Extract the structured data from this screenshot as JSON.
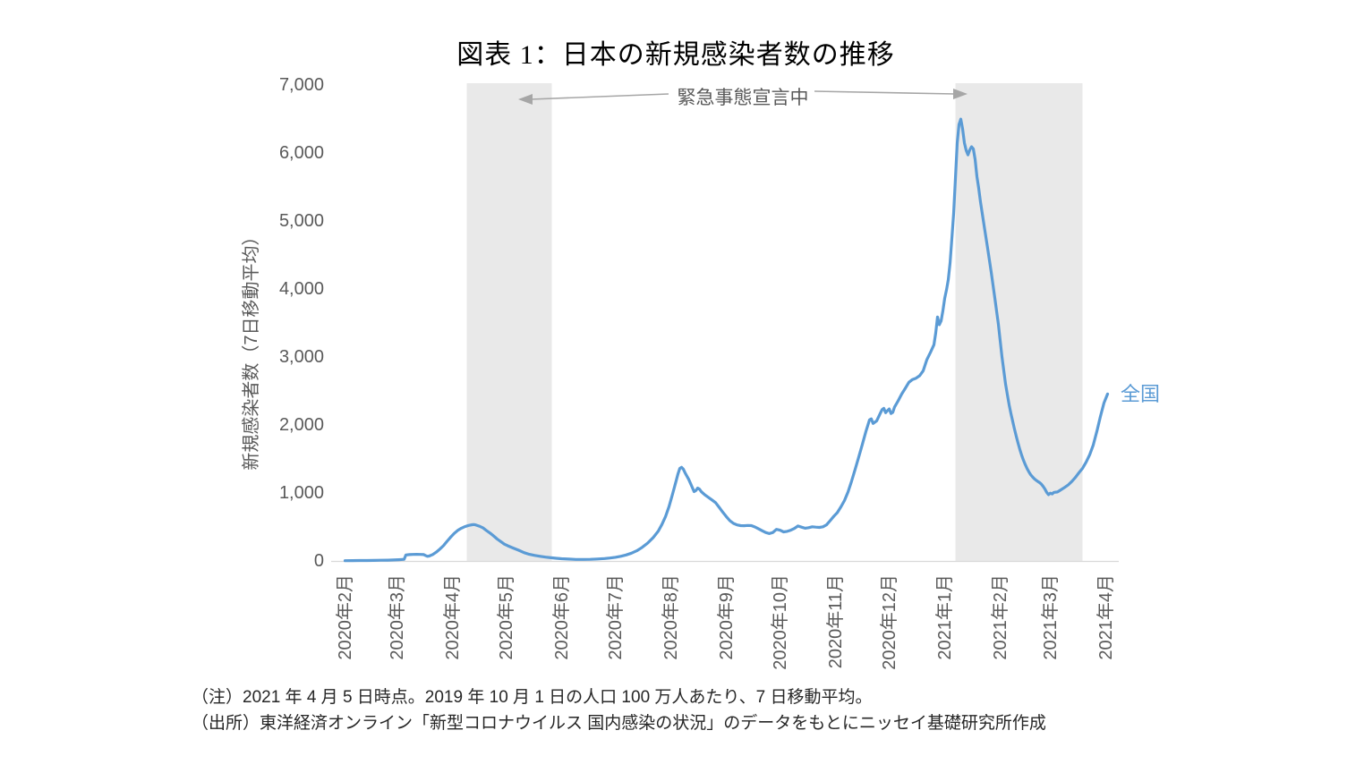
{
  "figure": {
    "title": "図表 1：日本の新規感染者数の推移",
    "note_1": "（注）2021 年 4 月 5 日時点。2019 年 10 月 1 日の人口 100 万人あたり、7 日移動平均。",
    "note_2": "（出所）東洋経済オンライン「新型コロナウイルス  国内感染の状況」のデータをもとにニッセイ基礎研究所作成"
  },
  "chart_data": {
    "type": "line",
    "title": "図表 1：日本の新規感染者数の推移",
    "xlabel": "",
    "ylabel": "新規感染者数（7日移動平均）",
    "ylim": [
      0,
      7000
    ],
    "grid": false,
    "legend_position": "end-of-line",
    "annotation": {
      "label": "緊急事態宣言中"
    },
    "shaded_bands": {
      "meaning": "緊急事態宣言中",
      "color": "#E9E9E9",
      "day_ranges": [
        [
          68,
          115.5
        ],
        [
          341,
          412
        ]
      ]
    },
    "x_unit_days_from": "2020-02",
    "x_ticks": [
      {
        "label": "2020年2月",
        "day": 0
      },
      {
        "label": "2020年3月",
        "day": 29
      },
      {
        "label": "2020年4月",
        "day": 60
      },
      {
        "label": "2020年5月",
        "day": 90
      },
      {
        "label": "2020年6月",
        "day": 121
      },
      {
        "label": "2020年7月",
        "day": 151
      },
      {
        "label": "2020年8月",
        "day": 182
      },
      {
        "label": "2020年9月",
        "day": 213
      },
      {
        "label": "2020年10月",
        "day": 243
      },
      {
        "label": "2020年11月",
        "day": 274
      },
      {
        "label": "2020年12月",
        "day": 304
      },
      {
        "label": "2021年1月",
        "day": 335
      },
      {
        "label": "2021年2月",
        "day": 366
      },
      {
        "label": "2021年3月",
        "day": 394
      },
      {
        "label": "2021年4月",
        "day": 425
      }
    ],
    "y_ticks": [
      {
        "label": "0",
        "value": 0
      },
      {
        "label": "1,000",
        "value": 1000
      },
      {
        "label": "2,000",
        "value": 2000
      },
      {
        "label": "3,000",
        "value": 3000
      },
      {
        "label": "4,000",
        "value": 4000
      },
      {
        "label": "5,000",
        "value": 5000
      },
      {
        "label": "6,000",
        "value": 6000
      },
      {
        "label": "7,000",
        "value": 7000
      }
    ],
    "series": [
      {
        "name": "全国",
        "color": "#5B9BD5",
        "points": [
          [
            0,
            4
          ],
          [
            4,
            5
          ],
          [
            8,
            6
          ],
          [
            12,
            7
          ],
          [
            16,
            8
          ],
          [
            20,
            10
          ],
          [
            24,
            12
          ],
          [
            27,
            15
          ],
          [
            30,
            19
          ],
          [
            33,
            24
          ],
          [
            34,
            88
          ],
          [
            36,
            93
          ],
          [
            38,
            96
          ],
          [
            40,
            97
          ],
          [
            42,
            96
          ],
          [
            44,
            93
          ],
          [
            45,
            80
          ],
          [
            46,
            68
          ],
          [
            47,
            72
          ],
          [
            49,
            95
          ],
          [
            51,
            130
          ],
          [
            53,
            175
          ],
          [
            55,
            225
          ],
          [
            57,
            290
          ],
          [
            59,
            350
          ],
          [
            61,
            405
          ],
          [
            63,
            450
          ],
          [
            65,
            482
          ],
          [
            67,
            505
          ],
          [
            69,
            522
          ],
          [
            71,
            533
          ],
          [
            72,
            536
          ],
          [
            73,
            530
          ],
          [
            75,
            512
          ],
          [
            77,
            488
          ],
          [
            79,
            448
          ],
          [
            81,
            410
          ],
          [
            83,
            368
          ],
          [
            85,
            322
          ],
          [
            87,
            286
          ],
          [
            89,
            248
          ],
          [
            91,
            222
          ],
          [
            94,
            190
          ],
          [
            97,
            158
          ],
          [
            100,
            122
          ],
          [
            103,
            98
          ],
          [
            106,
            82
          ],
          [
            109,
            68
          ],
          [
            112,
            56
          ],
          [
            115,
            47
          ],
          [
            118,
            39
          ],
          [
            121,
            33
          ],
          [
            125,
            27
          ],
          [
            129,
            23
          ],
          [
            133,
            22
          ],
          [
            137,
            24
          ],
          [
            141,
            29
          ],
          [
            145,
            36
          ],
          [
            148,
            44
          ],
          [
            151,
            54
          ],
          [
            154,
            68
          ],
          [
            157,
            88
          ],
          [
            160,
            115
          ],
          [
            163,
            150
          ],
          [
            166,
            200
          ],
          [
            169,
            262
          ],
          [
            172,
            340
          ],
          [
            175,
            440
          ],
          [
            177,
            535
          ],
          [
            179,
            650
          ],
          [
            181,
            800
          ],
          [
            183,
            985
          ],
          [
            185,
            1180
          ],
          [
            186,
            1280
          ],
          [
            187,
            1360
          ],
          [
            188,
            1378
          ],
          [
            189,
            1350
          ],
          [
            190,
            1295
          ],
          [
            192,
            1200
          ],
          [
            194,
            1080
          ],
          [
            195,
            1020
          ],
          [
            196,
            1035
          ],
          [
            197,
            1072
          ],
          [
            198,
            1058
          ],
          [
            199,
            1020
          ],
          [
            201,
            972
          ],
          [
            203,
            935
          ],
          [
            205,
            898
          ],
          [
            207,
            858
          ],
          [
            209,
            790
          ],
          [
            211,
            718
          ],
          [
            213,
            652
          ],
          [
            215,
            592
          ],
          [
            217,
            552
          ],
          [
            219,
            530
          ],
          [
            221,
            520
          ],
          [
            223,
            518
          ],
          [
            225,
            523
          ],
          [
            227,
            520
          ],
          [
            229,
            500
          ],
          [
            231,
            472
          ],
          [
            233,
            445
          ],
          [
            235,
            418
          ],
          [
            237,
            402
          ],
          [
            239,
            418
          ],
          [
            241,
            465
          ],
          [
            243,
            452
          ],
          [
            245,
            428
          ],
          [
            247,
            435
          ],
          [
            249,
            452
          ],
          [
            251,
            478
          ],
          [
            253,
            515
          ],
          [
            255,
            498
          ],
          [
            257,
            482
          ],
          [
            259,
            490
          ],
          [
            261,
            502
          ],
          [
            263,
            498
          ],
          [
            265,
            494
          ],
          [
            267,
            502
          ],
          [
            269,
            532
          ],
          [
            271,
            592
          ],
          [
            273,
            655
          ],
          [
            275,
            710
          ],
          [
            277,
            795
          ],
          [
            279,
            888
          ],
          [
            281,
            1015
          ],
          [
            283,
            1175
          ],
          [
            285,
            1350
          ],
          [
            287,
            1530
          ],
          [
            289,
            1715
          ],
          [
            291,
            1905
          ],
          [
            293,
            2075
          ],
          [
            294,
            2090
          ],
          [
            295,
            2022
          ],
          [
            297,
            2060
          ],
          [
            299,
            2170
          ],
          [
            300,
            2225
          ],
          [
            301,
            2245
          ],
          [
            302,
            2180
          ],
          [
            303,
            2210
          ],
          [
            304,
            2235
          ],
          [
            305,
            2168
          ],
          [
            306,
            2185
          ],
          [
            307,
            2265
          ],
          [
            309,
            2355
          ],
          [
            311,
            2455
          ],
          [
            313,
            2540
          ],
          [
            315,
            2628
          ],
          [
            317,
            2668
          ],
          [
            319,
            2688
          ],
          [
            321,
            2725
          ],
          [
            323,
            2798
          ],
          [
            325,
            2958
          ],
          [
            327,
            3065
          ],
          [
            329,
            3180
          ],
          [
            330,
            3355
          ],
          [
            331,
            3588
          ],
          [
            332,
            3475
          ],
          [
            333,
            3530
          ],
          [
            334,
            3680
          ],
          [
            335,
            3862
          ],
          [
            336,
            3985
          ],
          [
            337,
            4135
          ],
          [
            338,
            4380
          ],
          [
            339,
            4740
          ],
          [
            340,
            5110
          ],
          [
            341,
            5625
          ],
          [
            342,
            6148
          ],
          [
            343,
            6420
          ],
          [
            344,
            6497
          ],
          [
            345,
            6355
          ],
          [
            346,
            6150
          ],
          [
            347,
            6040
          ],
          [
            348,
            5972
          ],
          [
            349,
            6045
          ],
          [
            350,
            6092
          ],
          [
            351,
            6060
          ],
          [
            352,
            5905
          ],
          [
            353,
            5655
          ],
          [
            354,
            5482
          ],
          [
            355,
            5280
          ],
          [
            356,
            5108
          ],
          [
            357,
            4935
          ],
          [
            359,
            4598
          ],
          [
            361,
            4248
          ],
          [
            363,
            3868
          ],
          [
            365,
            3480
          ],
          [
            367,
            3002
          ],
          [
            369,
            2602
          ],
          [
            370,
            2448
          ],
          [
            371,
            2298
          ],
          [
            372,
            2168
          ],
          [
            373,
            2052
          ],
          [
            374,
            1938
          ],
          [
            375,
            1832
          ],
          [
            376,
            1732
          ],
          [
            377,
            1638
          ],
          [
            378,
            1555
          ],
          [
            379,
            1482
          ],
          [
            380,
            1418
          ],
          [
            381,
            1360
          ],
          [
            382,
            1312
          ],
          [
            383,
            1270
          ],
          [
            384,
            1238
          ],
          [
            385,
            1210
          ],
          [
            386,
            1188
          ],
          [
            387,
            1170
          ],
          [
            388,
            1152
          ],
          [
            389,
            1130
          ],
          [
            390,
            1098
          ],
          [
            391,
            1058
          ],
          [
            392,
            1008
          ],
          [
            393,
            975
          ],
          [
            394,
            998
          ],
          [
            395,
            985
          ],
          [
            396,
            1008
          ],
          [
            397,
            1012
          ],
          [
            398,
            1015
          ],
          [
            400,
            1048
          ],
          [
            402,
            1082
          ],
          [
            404,
            1118
          ],
          [
            406,
            1168
          ],
          [
            408,
            1228
          ],
          [
            410,
            1298
          ],
          [
            412,
            1362
          ],
          [
            414,
            1452
          ],
          [
            416,
            1562
          ],
          [
            418,
            1705
          ],
          [
            420,
            1905
          ],
          [
            422,
            2125
          ],
          [
            424,
            2325
          ],
          [
            426,
            2455
          ]
        ]
      }
    ]
  },
  "colors": {
    "line": "#5B9BD5",
    "band": "#E9E9E9",
    "axis_line": "#D9D9D9",
    "tick_text": "#595959",
    "annotation_line": "#A6A6A6",
    "series_label": "#5B9BD5"
  }
}
